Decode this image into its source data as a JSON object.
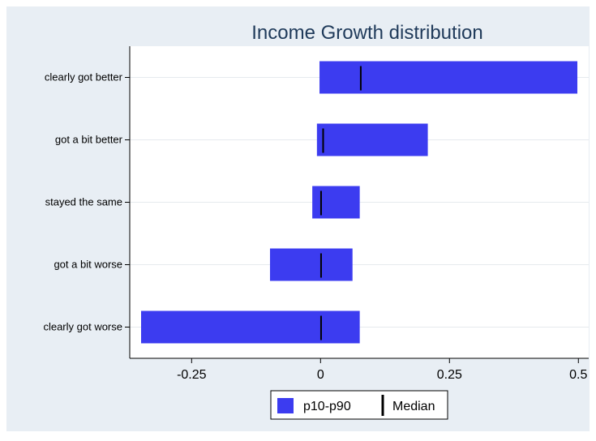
{
  "chart_data": {
    "type": "bar",
    "orientation": "horizontal",
    "title": "Income Growth distribution",
    "categories": [
      "clearly got better",
      "got a bit better",
      "stayed the same",
      "got a bit worse",
      "clearly got worse"
    ],
    "series": [
      {
        "name": "p10-p90",
        "kind": "range",
        "low": [
          -0.002,
          -0.007,
          -0.016,
          -0.098,
          -0.348
        ],
        "high": [
          0.498,
          0.208,
          0.076,
          0.062,
          0.076
        ]
      },
      {
        "name": "Median",
        "kind": "marker",
        "values": [
          0.078,
          0.005,
          0.001,
          0.001,
          0.001
        ]
      }
    ],
    "xlim": [
      -0.37,
      0.52
    ],
    "xticks": [
      -0.25,
      0,
      0.25,
      0.5
    ],
    "xtick_labels": [
      "-0.25",
      "0",
      "0.25",
      "0.5"
    ],
    "xlabel": "",
    "ylabel": "",
    "grid": true,
    "legend_position": "bottom-center",
    "colors": {
      "outer_background": "#e8eef4",
      "plot_background": "#ffffff",
      "bar": "#3c3cf0",
      "median": "#000000",
      "grid": "#e6eaee",
      "title": "#1f3a5a"
    }
  }
}
